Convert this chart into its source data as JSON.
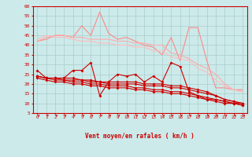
{
  "xlabel": "Vent moyen/en rafales ( km/h )",
  "xlim": [
    -0.5,
    23.5
  ],
  "ylim": [
    5,
    60
  ],
  "yticks": [
    5,
    10,
    15,
    20,
    25,
    30,
    35,
    40,
    45,
    50,
    55,
    60
  ],
  "xticks": [
    0,
    1,
    2,
    3,
    4,
    5,
    6,
    7,
    8,
    9,
    10,
    11,
    12,
    13,
    14,
    15,
    16,
    17,
    18,
    19,
    20,
    21,
    22,
    23
  ],
  "bg_color": "#cceaea",
  "grid_color": "#aacccc",
  "lines_light": [
    {
      "color": "#ff8888",
      "y": [
        42,
        43,
        45,
        45,
        44,
        50,
        45,
        57,
        46,
        43,
        44,
        42,
        40,
        39,
        35,
        44,
        32,
        49,
        49,
        32,
        18,
        18,
        17,
        17
      ]
    },
    {
      "color": "#ffaaaa",
      "y": [
        42,
        44,
        45,
        45,
        44,
        44,
        43,
        43,
        43,
        42,
        42,
        41,
        41,
        40,
        40,
        36,
        35,
        33,
        30,
        28,
        25,
        20,
        17,
        16
      ]
    },
    {
      "color": "#ffbbbb",
      "y": [
        43,
        45,
        44,
        44,
        43,
        42,
        42,
        41,
        41,
        40,
        40,
        39,
        39,
        37,
        37,
        34,
        33,
        32,
        28,
        26,
        22,
        19,
        17,
        16
      ]
    }
  ],
  "lines_dark": [
    {
      "color": "#cc0000",
      "y": [
        27,
        23,
        23,
        23,
        27,
        27,
        31,
        14,
        21,
        25,
        24,
        25,
        21,
        24,
        21,
        31,
        29,
        16,
        14,
        12,
        12,
        11,
        10,
        10
      ]
    },
    {
      "color": "#cc0000",
      "y": [
        24,
        23,
        23,
        23,
        23,
        22,
        22,
        21,
        21,
        21,
        21,
        21,
        20,
        20,
        20,
        19,
        19,
        18,
        17,
        16,
        14,
        12,
        11,
        10
      ]
    },
    {
      "color": "#cc0000",
      "y": [
        24,
        23,
        23,
        22,
        22,
        22,
        21,
        21,
        20,
        20,
        20,
        20,
        19,
        19,
        19,
        18,
        18,
        17,
        16,
        15,
        14,
        12,
        11,
        10
      ]
    },
    {
      "color": "#cc0000",
      "y": [
        24,
        23,
        22,
        22,
        21,
        21,
        20,
        20,
        19,
        19,
        19,
        18,
        18,
        17,
        17,
        16,
        16,
        15,
        14,
        13,
        12,
        11,
        10,
        9
      ]
    },
    {
      "color": "#cc0000",
      "y": [
        23,
        22,
        21,
        21,
        20,
        20,
        19,
        19,
        18,
        18,
        18,
        17,
        17,
        16,
        16,
        15,
        15,
        14,
        13,
        12,
        11,
        10,
        10,
        9
      ]
    }
  ],
  "arrow_color": "#cc0000",
  "axis_color": "#cc0000",
  "tick_color": "#cc0000",
  "label_color": "#cc0000"
}
